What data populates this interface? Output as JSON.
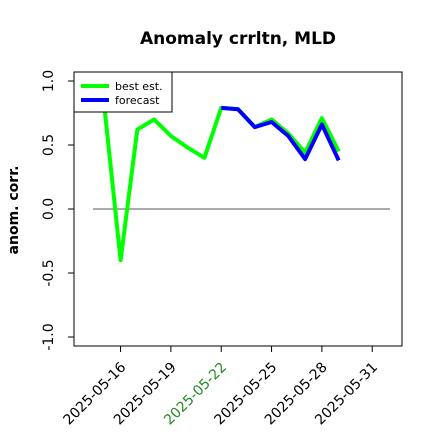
{
  "chart_data": {
    "type": "line",
    "title": "Anomaly crrltn, MLD",
    "ylabel": "anom. corr.",
    "xlabel": "",
    "ylim": [
      -1.0,
      1.0
    ],
    "yticks": [
      -1.0,
      -0.5,
      0.0,
      0.5,
      1.0
    ],
    "ytick_labels": [
      "-1.0",
      "-0.5",
      "0.0",
      "0.5",
      "1.0"
    ],
    "xlim": [
      "2025-05-14",
      "2025-06-01"
    ],
    "xtick_labels": [
      "2025-05-16",
      "2025-05-19",
      "2025-05-22",
      "2025-05-25",
      "2025-05-28",
      "2025-05-31"
    ],
    "highlight_tick": "2025-05-22",
    "highlight_color": "#228b22",
    "reference_line": 0.0,
    "grid": false,
    "legend_position": "top-left",
    "series": [
      {
        "name": "best est.",
        "color": "#00ff00",
        "x": [
          "2025-05-15",
          "2025-05-16",
          "2025-05-17",
          "2025-05-18",
          "2025-05-19",
          "2025-05-20",
          "2025-05-21",
          "2025-05-22",
          "2025-05-23",
          "2025-05-24",
          "2025-05-25",
          "2025-05-26",
          "2025-05-27",
          "2025-05-28",
          "2025-05-29"
        ],
        "values": [
          0.84,
          -0.4,
          0.62,
          0.7,
          0.57,
          0.48,
          0.4,
          0.79,
          0.78,
          0.64,
          0.7,
          0.59,
          0.44,
          0.71,
          0.45
        ]
      },
      {
        "name": "forecast",
        "color": "#0000ff",
        "x": [
          "2025-05-22",
          "2025-05-23",
          "2025-05-24",
          "2025-05-25",
          "2025-05-26",
          "2025-05-27",
          "2025-05-28",
          "2025-05-29"
        ],
        "values": [
          0.79,
          0.78,
          0.64,
          0.68,
          0.57,
          0.39,
          0.66,
          0.38
        ]
      }
    ]
  }
}
